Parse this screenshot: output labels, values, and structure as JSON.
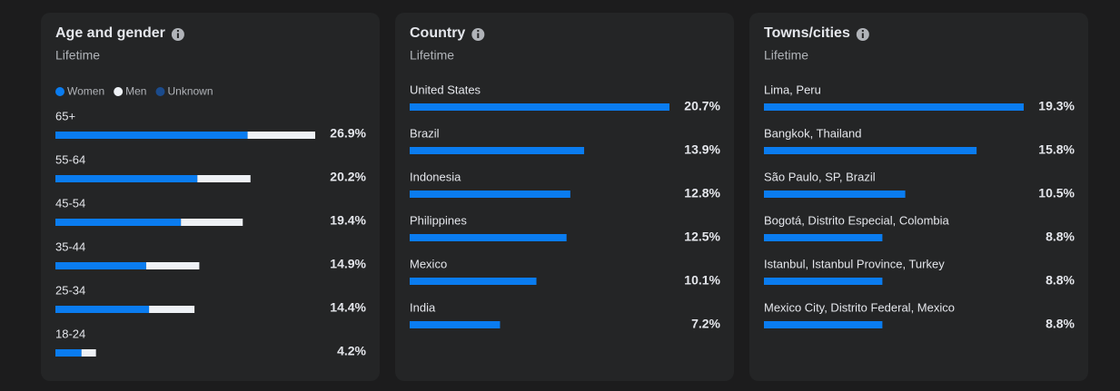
{
  "chart_data": [
    {
      "type": "bar",
      "orientation": "horizontal",
      "stacked": true,
      "title": "Age and gender",
      "subtitle": "Lifetime",
      "categories": [
        "65+",
        "55-64",
        "45-54",
        "35-44",
        "25-34",
        "18-24"
      ],
      "series": [
        {
          "name": "Women",
          "color": "#0a7cf0",
          "values": [
            19.9,
            14.7,
            13.0,
            9.4,
            9.7,
            2.7
          ]
        },
        {
          "name": "Men",
          "color": "#eef1f5",
          "values": [
            7.0,
            5.5,
            6.4,
            5.5,
            4.7,
            1.5
          ]
        },
        {
          "name": "Unknown",
          "color": "#1b4b8c",
          "values": [
            0,
            0,
            0,
            0,
            0,
            0
          ]
        }
      ],
      "totals": [
        26.9,
        20.2,
        19.4,
        14.9,
        14.4,
        4.2
      ],
      "total_labels": [
        "26.9%",
        "20.2%",
        "19.4%",
        "14.9%",
        "14.4%",
        "4.2%"
      ],
      "xlim": [
        0,
        26.9
      ]
    },
    {
      "type": "bar",
      "orientation": "horizontal",
      "title": "Country",
      "subtitle": "Lifetime",
      "categories": [
        "United States",
        "Brazil",
        "Indonesia",
        "Philippines",
        "Mexico",
        "India"
      ],
      "values": [
        20.7,
        13.9,
        12.8,
        12.5,
        10.1,
        7.2
      ],
      "value_labels": [
        "20.7%",
        "13.9%",
        "12.8%",
        "12.5%",
        "10.1%",
        "7.2%"
      ],
      "color": "#0a7cf0",
      "xlim": [
        0,
        20.7
      ]
    },
    {
      "type": "bar",
      "orientation": "horizontal",
      "title": "Towns/cities",
      "subtitle": "Lifetime",
      "categories": [
        "Lima, Peru",
        "Bangkok, Thailand",
        "São Paulo, SP, Brazil",
        "Bogotá, Distrito Especial, Colombia",
        "Istanbul, Istanbul Province, Turkey",
        "Mexico City, Distrito Federal, Mexico"
      ],
      "values": [
        19.3,
        15.8,
        10.5,
        8.8,
        8.8,
        8.8
      ],
      "value_labels": [
        "19.3%",
        "15.8%",
        "10.5%",
        "8.8%",
        "8.8%",
        "8.8%"
      ],
      "color": "#0a7cf0",
      "xlim": [
        0,
        19.3
      ]
    }
  ]
}
